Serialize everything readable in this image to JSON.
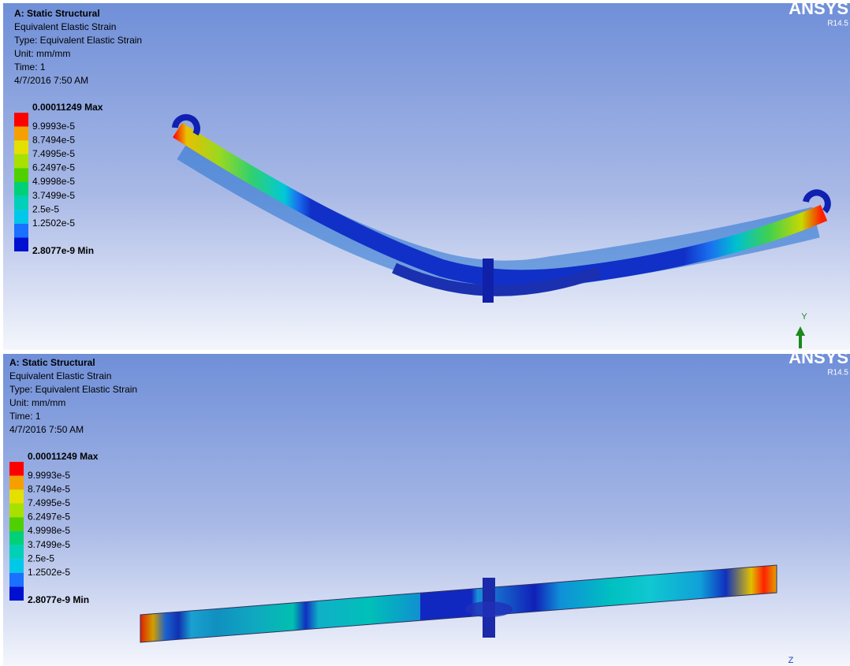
{
  "panels": [
    {
      "title": "A: Static Structural",
      "lines": [
        "Equivalent Elastic Strain",
        "Type: Equivalent Elastic Strain",
        "Unit: mm/mm",
        "Time: 1",
        "4/7/2016 7:50 AM"
      ],
      "legend": [
        "0.00011249 Max",
        "9.9993e-5",
        "8.7494e-5",
        "7.4995e-5",
        "6.2497e-5",
        "4.9998e-5",
        "3.7499e-5",
        "2.5e-5",
        "1.2502e-5",
        "2.8077e-9 Min"
      ],
      "logo": "ANSYS",
      "version": "R14.5",
      "axis": "Y"
    },
    {
      "title": "A: Static Structural",
      "lines": [
        "Equivalent Elastic Strain",
        "Type: Equivalent Elastic Strain",
        "Unit: mm/mm",
        "Time: 1",
        "4/7/2016 7:50 AM"
      ],
      "legend": [
        "0.00011249 Max",
        "9.9993e-5",
        "8.7494e-5",
        "7.4995e-5",
        "6.2497e-5",
        "4.9998e-5",
        "3.7499e-5",
        "2.5e-5",
        "1.2502e-5",
        "2.8077e-9 Min"
      ],
      "logo": "ANSYS",
      "version": "R14.5",
      "axis": "Z"
    }
  ]
}
